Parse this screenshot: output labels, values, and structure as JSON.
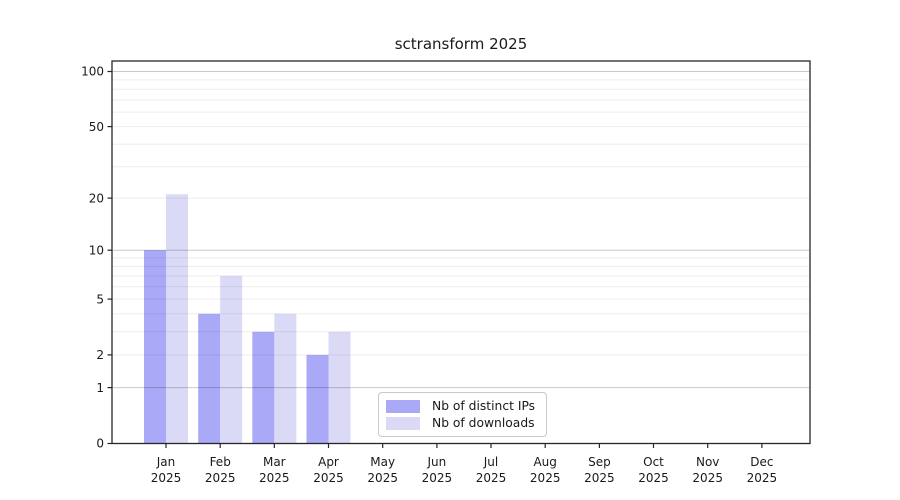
{
  "title": "sctransform 2025",
  "chart_data": {
    "type": "bar",
    "title": "sctransform 2025",
    "categories": [
      "Jan",
      "Feb",
      "Mar",
      "Apr",
      "May",
      "Jun",
      "Jul",
      "Aug",
      "Sep",
      "Oct",
      "Nov",
      "Dec"
    ],
    "category_year": "2025",
    "series": [
      {
        "name": "Nb of distinct IPs",
        "color": "#a9a9f7",
        "values": [
          10,
          4,
          3,
          2,
          0,
          0,
          0,
          0,
          0,
          0,
          0,
          0
        ]
      },
      {
        "name": "Nb of downloads",
        "color": "#dadaf7",
        "values": [
          21,
          7,
          4,
          3,
          0,
          0,
          0,
          0,
          0,
          0,
          0,
          0
        ]
      }
    ],
    "xlabel": "",
    "ylabel": "",
    "yscale": "log1p",
    "ylim": [
      0,
      100
    ],
    "yticks": [
      0,
      1,
      2,
      5,
      10,
      20,
      50,
      100
    ],
    "minor_gridlines": [
      2,
      3,
      4,
      5,
      6,
      7,
      8,
      9,
      20,
      30,
      40,
      50,
      60,
      70,
      80,
      90
    ],
    "major_gridlines": [
      1,
      10,
      100
    ],
    "grid": "horizontal",
    "legend_position": "lower center"
  },
  "colors": {
    "bar_distinct_ips": "#a9a9f7",
    "bar_downloads": "#dadaf7",
    "minor_grid": "#ededed",
    "major_grid": "#c9c9c9",
    "axis": "#262626",
    "text": "#1a1a1a",
    "legend_border": "#c9c9c9"
  }
}
